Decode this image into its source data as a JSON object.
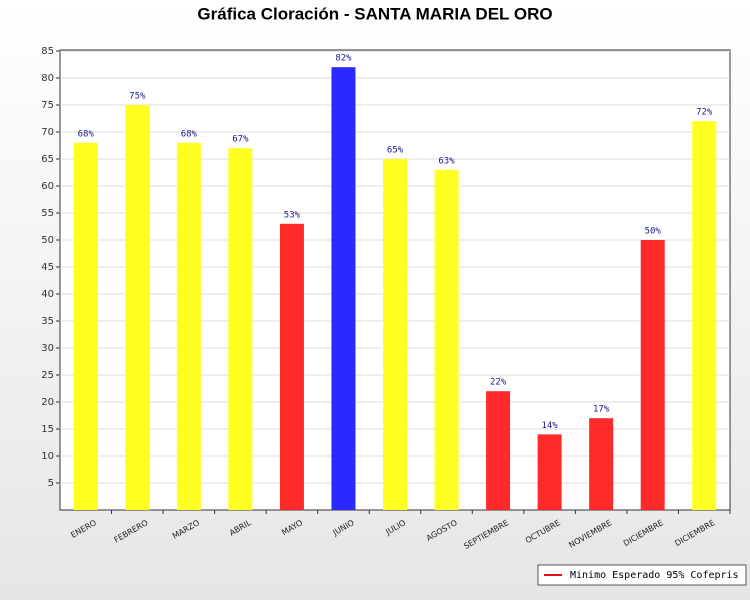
{
  "chart_data": {
    "type": "bar",
    "title": "Gráfica Cloración - SANTA MARIA DEL ORO",
    "categories": [
      "ENERO",
      "FEBRERO",
      "MARZO",
      "ABRIL",
      "MAYO",
      "JUNIO",
      "JULIO",
      "AGOSTO",
      "SEPTIEMBRE",
      "OCTUBRE",
      "NOVIEMBRE",
      "DICIEMBRE",
      "DICIEMBRE"
    ],
    "values": [
      68,
      75,
      68,
      67,
      53,
      82,
      65,
      63,
      22,
      14,
      17,
      50,
      72
    ],
    "value_labels": [
      "68%",
      "75%",
      "68%",
      "67%",
      "53%",
      "82%",
      "65%",
      "63%",
      "22%",
      "14%",
      "17%",
      "50%",
      "72%"
    ],
    "colors": [
      "#ffff22",
      "#ffff22",
      "#ffff22",
      "#ffff22",
      "#ff2a2a",
      "#2a2aff",
      "#ffff22",
      "#ffff22",
      "#ff2a2a",
      "#ff2a2a",
      "#ff2a2a",
      "#ff2a2a",
      "#ffff22"
    ],
    "ylim": [
      0,
      85
    ],
    "yticks": [
      5,
      10,
      15,
      20,
      25,
      30,
      35,
      40,
      45,
      50,
      55,
      60,
      65,
      70,
      75,
      80,
      85
    ],
    "grid": true,
    "legend": {
      "name": "Minimo Esperado 95% Cofepris",
      "color": "#e01010",
      "position": "bottom-right"
    }
  }
}
